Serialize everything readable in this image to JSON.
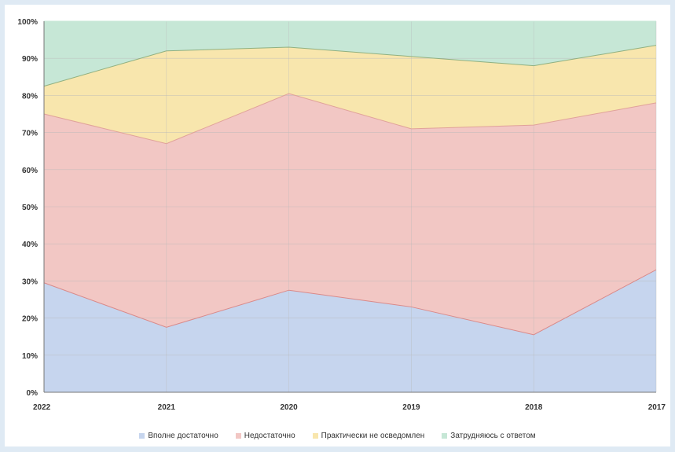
{
  "chart_data": {
    "type": "area",
    "stacked": true,
    "percent": true,
    "categories": [
      "2022",
      "2021",
      "2020",
      "2019",
      "2018",
      "2017"
    ],
    "series": [
      {
        "name": "Вполне достаточно",
        "values": [
          29.5,
          17.5,
          27.5,
          23,
          15.5,
          33
        ],
        "color": "#c6d5ee",
        "line": "#d98a8a"
      },
      {
        "name": "Недостаточно",
        "values": [
          45.5,
          49.5,
          53,
          48,
          56.5,
          45
        ],
        "color": "#f2c7c4",
        "line": "#e0a29a"
      },
      {
        "name": "Практически не осведомлен",
        "values": [
          7.5,
          25,
          12.5,
          19.5,
          16,
          15.5
        ],
        "color": "#f8e6ad",
        "line": "#90b080"
      },
      {
        "name": "Затрудняюсь с ответом",
        "values": [
          17.5,
          8,
          7,
          9.5,
          12,
          6.5
        ],
        "color": "#c6e7d6",
        "line": "#c6e7d6"
      }
    ],
    "y_ticks": [
      "0%",
      "10%",
      "20%",
      "30%",
      "40%",
      "50%",
      "60%",
      "70%",
      "80%",
      "90%",
      "100%"
    ],
    "ylim": [
      0,
      100
    ],
    "grid": true,
    "legend_position": "bottom",
    "title": "",
    "xlabel": "",
    "ylabel": ""
  }
}
